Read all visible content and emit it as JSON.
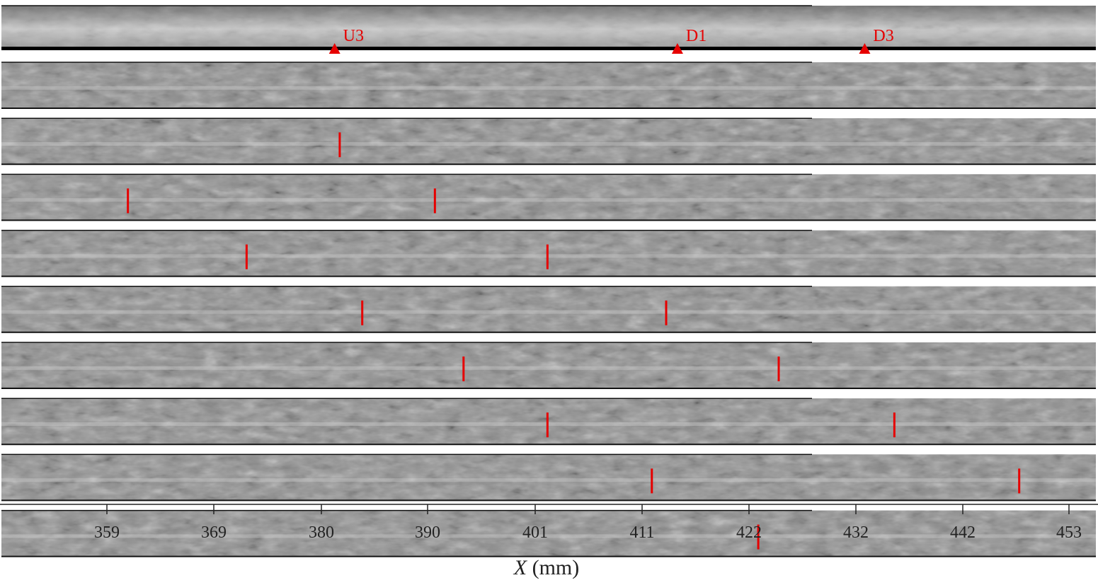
{
  "figure": {
    "x_axis": {
      "label_var": "X",
      "label_unit": " (mm)",
      "tick_labels": [
        "359",
        "369",
        "380",
        "390",
        "401",
        "411",
        "422",
        "432",
        "442",
        "453"
      ],
      "range_mm": [
        347.9,
        455.2
      ]
    },
    "sensors": [
      {
        "label": "U3",
        "x_mm": 380.6
      },
      {
        "label": "D1",
        "x_mm": 414.1
      },
      {
        "label": "D3",
        "x_mm": 432.4
      }
    ],
    "frames_count": 9,
    "markers_mm": [
      [],
      [
        381.1
      ],
      [
        360.4,
        390.4
      ],
      [
        372.0,
        401.4
      ],
      [
        383.3,
        413.0
      ],
      [
        393.2,
        424.0
      ],
      [
        401.4,
        435.3
      ],
      [
        411.6,
        447.5
      ],
      [
        422.0
      ]
    ],
    "colors": {
      "marker": "#e60000",
      "frame_bg": "#8f8f8f",
      "axis": "#222222"
    }
  }
}
